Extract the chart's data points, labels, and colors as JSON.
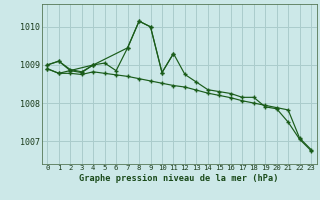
{
  "background_color": "#cce8e8",
  "grid_color": "#aacccc",
  "line_color": "#1a5c1a",
  "x_labels": [
    "0",
    "1",
    "2",
    "3",
    "4",
    "5",
    "6",
    "7",
    "8",
    "9",
    "10",
    "11",
    "12",
    "13",
    "14",
    "15",
    "16",
    "17",
    "18",
    "19",
    "20",
    "21",
    "22",
    "23"
  ],
  "xlabel": "Graphe pression niveau de la mer (hPa)",
  "ylim": [
    1006.4,
    1010.6
  ],
  "yticks": [
    1007,
    1008,
    1009,
    1010
  ],
  "line1": [
    1009.0,
    1009.1,
    1008.85,
    1008.8,
    1009.0,
    1009.05,
    1008.85,
    1009.45,
    1010.15,
    1010.0,
    1008.8,
    1009.3,
    1008.75,
    1008.55,
    1008.35,
    1008.3,
    1008.25,
    1008.15,
    1008.15,
    1007.9,
    1007.85,
    1007.5,
    1007.05,
    1006.75
  ],
  "line2": [
    1008.9,
    1008.78,
    1008.78,
    1008.75,
    1008.82,
    1008.78,
    1008.74,
    1008.7,
    1008.64,
    1008.58,
    1008.52,
    1008.46,
    1008.42,
    1008.34,
    1008.26,
    1008.2,
    1008.14,
    1008.06,
    1008.0,
    1007.94,
    1007.88,
    1007.82,
    1007.08,
    1006.78
  ],
  "line3_x": [
    0,
    1,
    2,
    3,
    4
  ],
  "line3_y": [
    1009.0,
    1009.1,
    1008.88,
    1008.82,
    1009.0
  ],
  "line4_x": [
    0,
    1,
    4,
    7,
    8,
    9,
    10,
    11
  ],
  "line4_y": [
    1008.9,
    1008.78,
    1009.0,
    1009.45,
    1010.15,
    1010.0,
    1008.8,
    1009.3
  ]
}
